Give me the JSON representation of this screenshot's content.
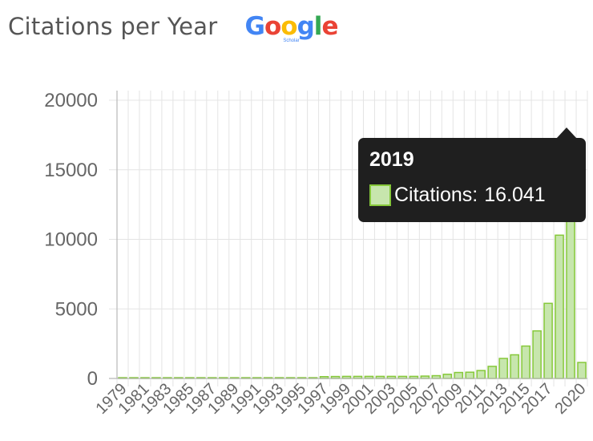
{
  "header": {
    "title": "Citations per Year",
    "logo_text": "Google",
    "logo_sub": "Scholar"
  },
  "tooltip": {
    "year": "2019",
    "series_label": "Citations:",
    "value_text": "16.041"
  },
  "colors": {
    "bar_fill": "#c7e6ad",
    "bar_stroke": "#86c83a",
    "grid": "#e4e4e4",
    "axis": "#b8b8b8",
    "tooltip_bg": "#1f1f1f",
    "logo": [
      "#4285f4",
      "#ea4335",
      "#fbbc05",
      "#4285f4",
      "#34a853",
      "#ea4335"
    ]
  },
  "chart_data": {
    "type": "bar",
    "title": "Citations per Year",
    "xlabel": "",
    "ylabel": "",
    "ylim": [
      0,
      20000
    ],
    "yticks": [
      0,
      5000,
      10000,
      15000,
      20000
    ],
    "grid": true,
    "categories": [
      "1979",
      "1980",
      "1981",
      "1982",
      "1983",
      "1984",
      "1985",
      "1986",
      "1987",
      "1988",
      "1989",
      "1990",
      "1991",
      "1992",
      "1993",
      "1994",
      "1995",
      "1996",
      "1997",
      "1998",
      "1999",
      "2000",
      "2001",
      "2002",
      "2003",
      "2004",
      "2005",
      "2006",
      "2007",
      "2008",
      "2009",
      "2010",
      "2011",
      "2012",
      "2013",
      "2014",
      "2015",
      "2016",
      "2017",
      "2018",
      "2019",
      "2020"
    ],
    "xtick_labels": [
      "1979",
      "1981",
      "1983",
      "1985",
      "1987",
      "1989",
      "1991",
      "1993",
      "1995",
      "1997",
      "1999",
      "2001",
      "2003",
      "2005",
      "2007",
      "2009",
      "2011",
      "2013",
      "2015",
      "2017",
      "2020"
    ],
    "series": [
      {
        "name": "Citations",
        "values": [
          20,
          20,
          20,
          20,
          20,
          20,
          20,
          20,
          20,
          20,
          20,
          20,
          20,
          20,
          20,
          20,
          20,
          30,
          130,
          140,
          150,
          150,
          150,
          150,
          150,
          150,
          150,
          170,
          200,
          300,
          430,
          450,
          570,
          870,
          1440,
          1700,
          2330,
          3420,
          5400,
          10300,
          16041,
          1150
        ]
      }
    ]
  }
}
